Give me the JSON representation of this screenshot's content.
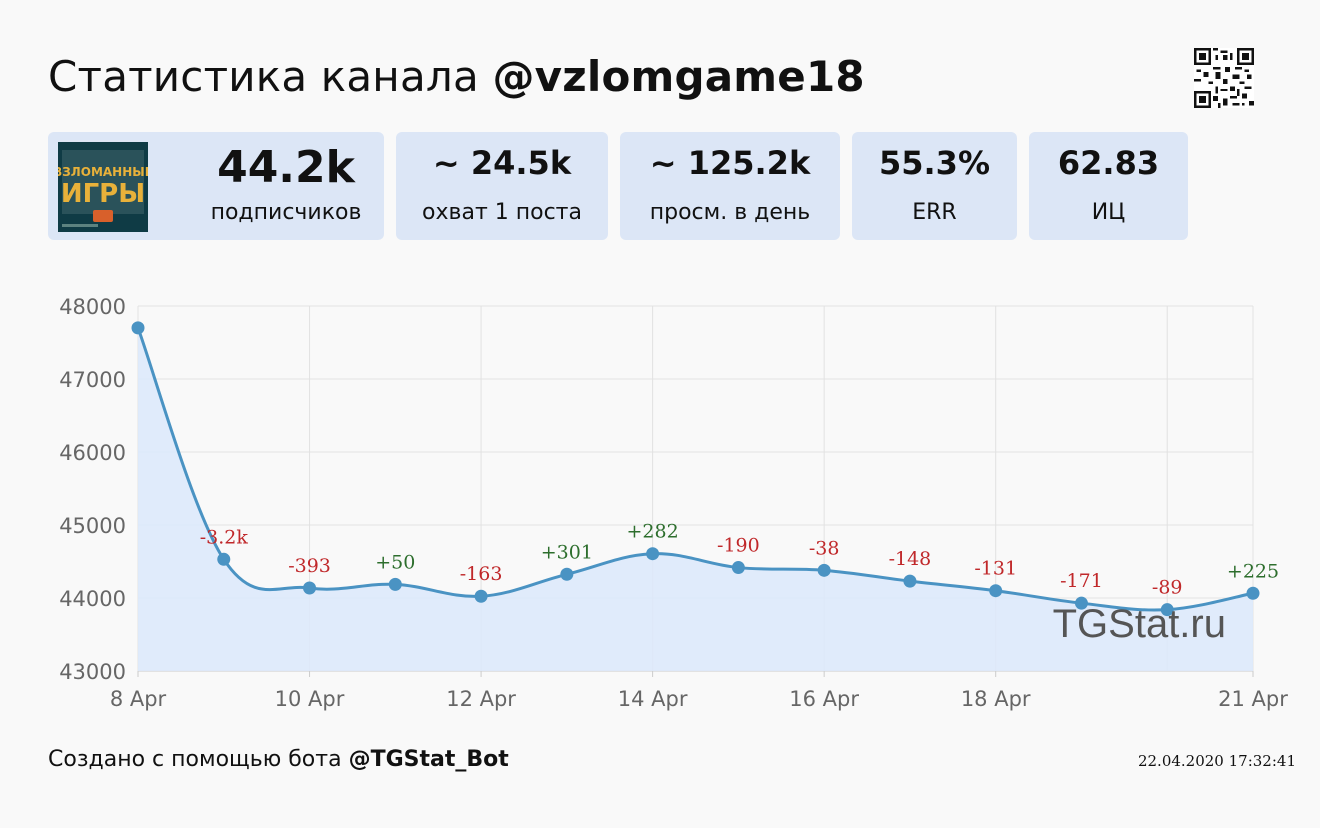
{
  "header": {
    "title_prefix": "Статистика канала",
    "channel": "@vzlomgame18"
  },
  "cards": [
    {
      "value": "44.2k",
      "label": "подписчиков"
    },
    {
      "value": "~ 24.5k",
      "label": "охват 1 поста"
    },
    {
      "value": "~ 125.2k",
      "label": "просм. в день"
    },
    {
      "value": "55.3%",
      "label": "ERR"
    },
    {
      "value": "62.83",
      "label": "ИЦ"
    }
  ],
  "avatar": {
    "line1": "ВЗЛОМАННЫЕ",
    "line2": "ИГРЫ",
    "bg_color": "#0f3b45",
    "accent": "#e8b13a"
  },
  "watermark": "TGStat.ru",
  "footer": {
    "prefix": "Создано с помощью бота",
    "bot": "@TGStat_Bot",
    "timestamp": "22.04.2020 17:32:41"
  },
  "colors": {
    "line": "#4a93c3",
    "fill": "#dde9fb",
    "positive": "#2d6e2d",
    "negative": "#c0282a",
    "card_bg": "#dce6f6"
  },
  "chart_data": {
    "type": "line",
    "x": [
      "8 Apr",
      "9 Apr",
      "10 Apr",
      "11 Apr",
      "12 Apr",
      "13 Apr",
      "14 Apr",
      "15 Apr",
      "16 Apr",
      "17 Apr",
      "18 Apr",
      "19 Apr",
      "20 Apr",
      "21 Apr"
    ],
    "x_tick_labels": [
      "8 Apr",
      "10 Apr",
      "12 Apr",
      "14 Apr",
      "16 Apr",
      "18 Apr",
      "21 Apr"
    ],
    "series": [
      {
        "values": [
          47700,
          44530,
          44137,
          44187,
          44024,
          44325,
          44607,
          44417,
          44379,
          44231,
          44100,
          43929,
          43840,
          44065
        ]
      }
    ],
    "data_labels": [
      "",
      "-3.2k",
      "-393",
      "+50",
      "-163",
      "+301",
      "+282",
      "-190",
      "-38",
      "-148",
      "-131",
      "-171",
      "-89",
      "+225"
    ],
    "ylim": [
      43000,
      48000
    ],
    "y_ticks": [
      43000,
      44000,
      45000,
      46000,
      47000,
      48000
    ],
    "grid": true,
    "xlabel": "",
    "ylabel": ""
  }
}
